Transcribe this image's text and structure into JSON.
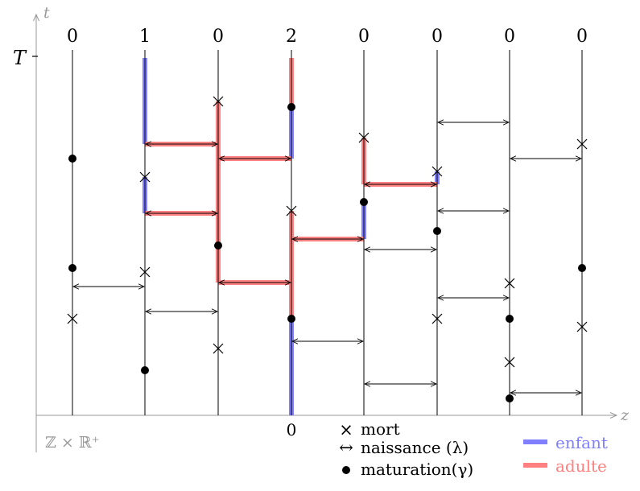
{
  "axes": {
    "t_label": "t",
    "z_label": "z",
    "T_label": "T",
    "origin_label": "0",
    "space_label": "ℤ × ℝ⁺"
  },
  "columns": [
    {
      "count": "0"
    },
    {
      "count": "1"
    },
    {
      "count": "0"
    },
    {
      "count": "2"
    },
    {
      "count": "0"
    },
    {
      "count": "0"
    },
    {
      "count": "0"
    },
    {
      "count": "0"
    }
  ],
  "legend": {
    "death_symbol": "×",
    "death_label": "mort",
    "birth_symbol": "↔",
    "birth_label": "naissance (λ)",
    "maturation_label": "maturation(γ)",
    "child_label": "enfant",
    "adult_label": "adulte"
  },
  "colors": {
    "child": "#7f7fff",
    "adult": "#ff8080",
    "axis": "#999999",
    "ink": "#000000"
  }
}
